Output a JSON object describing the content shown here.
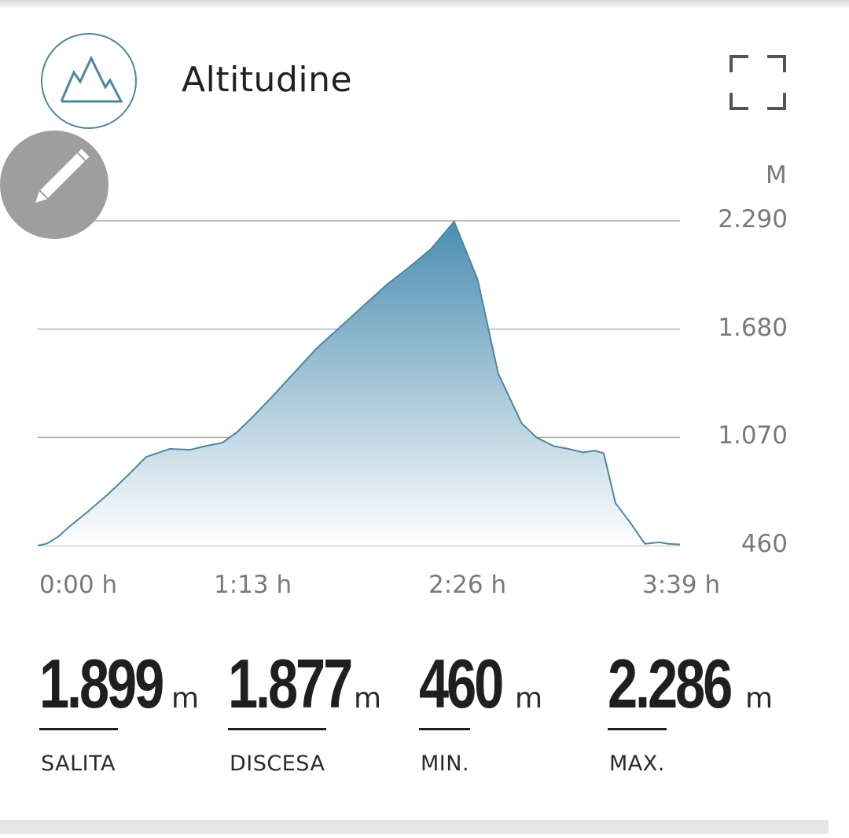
{
  "header": {
    "title": "Altitudine",
    "badge_icon": "mountain-icon",
    "expand_icon": "fullscreen-icon",
    "edit_icon": "pencil-icon"
  },
  "colors": {
    "accent": "#4a87a3",
    "area_top": "#4a8db0",
    "area_bottom": "#ffffff",
    "grid": "#9a9a9a"
  },
  "chart_data": {
    "type": "area",
    "ylabel": "M",
    "xlabel": "",
    "x_unit": "h",
    "x_tick_labels": [
      "0:00 h",
      "1:13 h",
      "2:26 h",
      "3:39 h"
    ],
    "y_tick_labels": [
      "2.290",
      "1.680",
      "1.070",
      "460"
    ],
    "y_ticks": [
      2290,
      1680,
      1070,
      460
    ],
    "ylim": [
      460,
      2290
    ],
    "xlim": [
      0,
      219
    ],
    "grid": true,
    "series": [
      {
        "x": [
          0,
          3,
          7,
          11,
          17,
          24,
          31,
          37,
          45,
          52,
          57,
          63,
          68,
          73,
          80,
          85,
          90,
          95,
          103,
          111,
          119,
          126,
          134,
          142,
          150,
          157,
          165,
          170,
          176,
          181,
          186,
          190,
          193,
          197,
          202,
          207,
          212,
          215,
          219
        ],
        "values": [
          460,
          470,
          510,
          570,
          650,
          750,
          860,
          960,
          1005,
          1000,
          1020,
          1040,
          1100,
          1180,
          1300,
          1390,
          1480,
          1570,
          1690,
          1810,
          1930,
          2020,
          2130,
          2286,
          1960,
          1430,
          1150,
          1070,
          1020,
          1005,
          985,
          995,
          980,
          700,
          590,
          470,
          478,
          470,
          466
        ]
      }
    ]
  },
  "stats": [
    {
      "value": "1.899",
      "unit": "m",
      "label": "SALITA"
    },
    {
      "value": "1.877",
      "unit": "m",
      "label": "DISCESA"
    },
    {
      "value": "460",
      "unit": "m",
      "label": "MIN."
    },
    {
      "value": "2.286",
      "unit": "m",
      "label": "MAX."
    }
  ]
}
